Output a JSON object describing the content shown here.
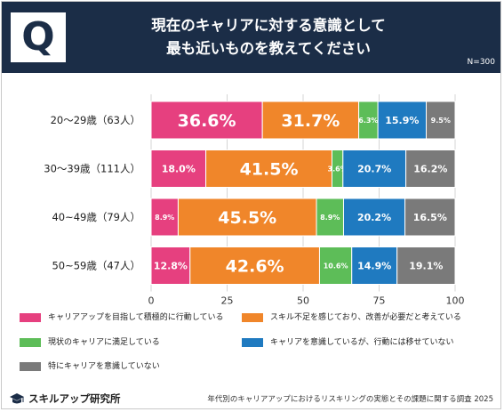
{
  "header": {
    "badge_letter": "Q",
    "title_line1": "現在のキャリアに対する意識として",
    "title_line2": "最も近いものを教えてください",
    "n_label": "N=300"
  },
  "colors": {
    "header_bg": "#1b2d47",
    "series": [
      "#e6407f",
      "#f0862a",
      "#5dbd58",
      "#1f7ac0",
      "#7a7a7a"
    ]
  },
  "legend": [
    "キャリアアップを目指して積極的に行動している",
    "スキル不足を感じており、改善が必要だと考えている",
    "現状のキャリアに満足している",
    "キャリアを意識しているが、行動には移せていない",
    "特にキャリアを意識していない"
  ],
  "chart_data": {
    "type": "bar",
    "orientation": "horizontal",
    "stacked": true,
    "categories": [
      "20～29歳（63人）",
      "30～39歳（111人）",
      "40~49歳（79人）",
      "50~59歳（47人）"
    ],
    "series": [
      {
        "name": "キャリアアップを目指して積極的に行動している",
        "values": [
          36.6,
          18.0,
          8.9,
          12.8
        ]
      },
      {
        "name": "スキル不足を感じており、改善が必要だと考えている",
        "values": [
          31.7,
          41.5,
          45.5,
          42.6
        ]
      },
      {
        "name": "現状のキャリアに満足している",
        "values": [
          6.3,
          3.6,
          8.9,
          10.6
        ]
      },
      {
        "name": "キャリアを意識しているが、行動には移せていない",
        "values": [
          15.9,
          20.7,
          20.2,
          14.9
        ]
      },
      {
        "name": "特にキャリアを意識していない",
        "values": [
          9.5,
          16.2,
          16.5,
          19.1
        ]
      }
    ],
    "xlim": [
      0,
      100
    ],
    "xticks": [
      "0",
      "25",
      "50",
      "75",
      "100"
    ],
    "grid": true,
    "legend_position": "bottom"
  },
  "footer": {
    "logo_text": "スキルアップ研究所",
    "source": "年代別のキャリアアップにおけるリスキリングの実態とその課題に関する調査 2025"
  }
}
